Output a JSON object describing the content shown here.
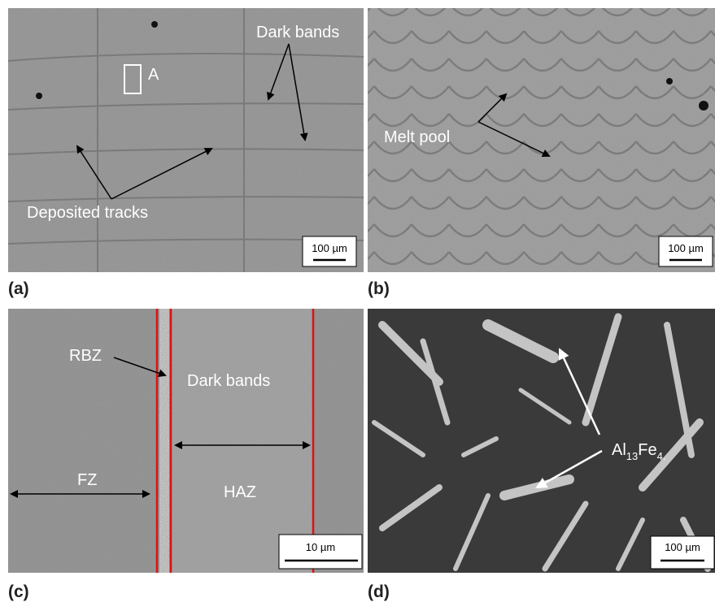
{
  "panels": [
    {
      "label": "(a)",
      "annotations": {
        "box": "A",
        "bands": "Dark bands",
        "tracks": "Deposited tracks"
      },
      "scale_bar": "100 µm"
    },
    {
      "label": "(b)",
      "annotations": {
        "pool": "Melt pool"
      },
      "scale_bar": "100 µm"
    },
    {
      "label": "(c)",
      "annotations": {
        "rbz": "RBZ",
        "bands": "Dark bands",
        "fz": "FZ",
        "haz": "HAZ"
      },
      "scale_bar": "10 µm"
    },
    {
      "label": "(d)",
      "annotations": {
        "phase": [
          "Al",
          "13",
          "Fe",
          "4."
        ]
      },
      "scale_bar": "100 µm"
    }
  ]
}
